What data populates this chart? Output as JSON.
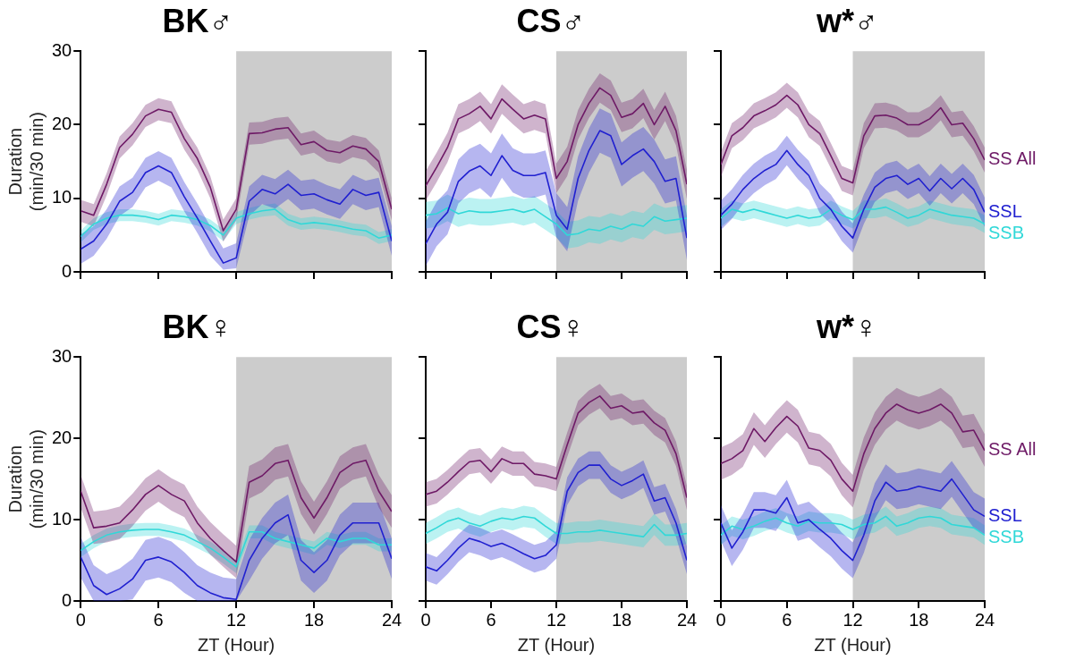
{
  "chart_data": [
    {
      "type": "line",
      "title": "BK♂",
      "ylabel": "Duration\n(min/30 min)",
      "x": [
        0,
        1,
        2,
        3,
        4,
        5,
        6,
        7,
        8,
        9,
        10,
        11,
        12,
        13,
        14,
        15,
        16,
        17,
        18,
        19,
        20,
        21,
        22,
        23,
        24
      ],
      "xlim": [
        0,
        24
      ],
      "xticks": [
        0,
        6,
        12,
        18,
        24
      ],
      "ylim": [
        0,
        30
      ],
      "yticks": [
        0,
        10,
        20,
        30
      ],
      "tick_labels": "y",
      "grid": false,
      "bands": [
        {
          "axis": "x",
          "from": 12,
          "to": 24,
          "color": "#cccccc"
        }
      ],
      "series": [
        {
          "color": "#6e1a66",
          "values": [
            8.3,
            7.7,
            11.9,
            16.9,
            18.7,
            21.2,
            22.1,
            21.7,
            18.1,
            15.4,
            11.5,
            5.6,
            8.5,
            18.8,
            18.9,
            19.4,
            19.6,
            17.3,
            17.7,
            16.5,
            16.2,
            17.1,
            16.7,
            15,
            8.5
          ],
          "lower": [
            6.8,
            6.2,
            10.4,
            15.4,
            17.2,
            19.7,
            20.6,
            20.2,
            16.6,
            13.9,
            10,
            4.1,
            7,
            17.3,
            17.4,
            17.9,
            18.1,
            15.8,
            16.2,
            15,
            14.7,
            15.6,
            15.2,
            13.5,
            7
          ],
          "upper": [
            9.8,
            9.2,
            13.4,
            18.4,
            20.2,
            22.7,
            23.6,
            23.2,
            19.6,
            16.9,
            13,
            7.1,
            10,
            20.3,
            20.4,
            20.9,
            21.1,
            18.8,
            19.2,
            18,
            17.7,
            18.6,
            18.2,
            16.5,
            10
          ]
        },
        {
          "color": "#2020d0",
          "values": [
            3.1,
            4.2,
            6.5,
            9.6,
            10.8,
            13.5,
            14.4,
            13.5,
            10.2,
            7.3,
            4.2,
            1.2,
            1.9,
            9.6,
            11.2,
            10.6,
            11.9,
            10.4,
            10.6,
            9.8,
            9.2,
            11.2,
            10.4,
            10.8,
            4.2
          ],
          "lower": [
            1.1,
            2.2,
            4.5,
            7.6,
            8.8,
            11.5,
            12.4,
            11.5,
            8.2,
            5.3,
            2.2,
            0.3,
            0.5,
            7.6,
            9.2,
            8.6,
            9.9,
            8.4,
            8.6,
            7.8,
            7.2,
            9.2,
            8.4,
            8.8,
            2.2
          ],
          "upper": [
            5.1,
            6.2,
            8.5,
            11.6,
            12.8,
            15.5,
            16.4,
            15.5,
            12.2,
            9.3,
            6.2,
            3.2,
            3.9,
            11.6,
            13.2,
            12.6,
            13.9,
            12.4,
            12.6,
            11.8,
            11.2,
            13.2,
            12.4,
            12.8,
            6.2
          ]
        },
        {
          "color": "#30d8d8",
          "values": [
            4.8,
            6.5,
            7.3,
            7.7,
            7.7,
            7.5,
            7.1,
            7.7,
            7.5,
            7.1,
            6.3,
            5,
            7.3,
            7.9,
            8.3,
            8.5,
            7.1,
            6.5,
            6.7,
            6.5,
            6.2,
            5.8,
            5.6,
            4.6,
            5
          ],
          "lower": [
            4,
            5.7,
            6.5,
            6.9,
            6.9,
            6.7,
            6.3,
            6.9,
            6.7,
            6.3,
            5.5,
            4.2,
            6.5,
            7.1,
            7.5,
            7.7,
            6.3,
            5.7,
            5.9,
            5.7,
            5.4,
            5,
            4.8,
            3.8,
            4.2
          ],
          "upper": [
            5.6,
            7.3,
            8.1,
            8.5,
            8.5,
            8.3,
            7.9,
            8.5,
            8.3,
            7.9,
            7.1,
            5.8,
            8.1,
            8.7,
            9.1,
            9.3,
            7.9,
            7.3,
            7.5,
            7.3,
            7,
            6.6,
            6.4,
            5.4,
            5.8
          ]
        }
      ]
    },
    {
      "type": "line",
      "title": "CS♂",
      "x": [
        0,
        1,
        2,
        3,
        4,
        5,
        6,
        7,
        8,
        9,
        10,
        11,
        12,
        13,
        14,
        15,
        16,
        17,
        18,
        19,
        20,
        21,
        22,
        23,
        24
      ],
      "xlim": [
        0,
        24
      ],
      "xticks": [
        0,
        6,
        12,
        18,
        24
      ],
      "ylim": [
        0,
        30
      ],
      "yticks": [
        0,
        10,
        20,
        30
      ],
      "tick_labels": false,
      "grid": false,
      "bands": [
        {
          "axis": "x",
          "from": 12,
          "to": 24,
          "color": "#cccccc"
        }
      ],
      "series": [
        {
          "color": "#6e1a66",
          "values": [
            11.7,
            14.2,
            16.9,
            20.8,
            21.5,
            22.5,
            20.8,
            23.5,
            22.1,
            20.8,
            21.3,
            20.8,
            12.7,
            15,
            20,
            22.9,
            25,
            24,
            21,
            21.5,
            22.9,
            20,
            22.5,
            19.2,
            11.9
          ],
          "lower": [
            9.7,
            12.2,
            14.9,
            18.8,
            19.5,
            20.5,
            18.8,
            21.5,
            20.1,
            18.8,
            19.3,
            18.8,
            10.7,
            13,
            18,
            20.9,
            23,
            22,
            19,
            19.5,
            20.9,
            18,
            20.5,
            17.2,
            9.9
          ],
          "upper": [
            13.7,
            16.2,
            18.9,
            22.8,
            23.5,
            24.5,
            22.8,
            25.5,
            24.1,
            22.8,
            23.3,
            22.8,
            14.7,
            17,
            22,
            24.9,
            27,
            26,
            23,
            23.5,
            24.9,
            22,
            24.5,
            21.2,
            13.9
          ]
        },
        {
          "color": "#2020d0",
          "values": [
            3.8,
            6.5,
            8.1,
            12.3,
            13.7,
            14.4,
            13.1,
            15.8,
            13.8,
            13.1,
            13.1,
            13.5,
            7.7,
            5.8,
            12.7,
            16.5,
            19.2,
            18.5,
            14.6,
            15.8,
            16.7,
            15,
            12.3,
            12.7,
            4.6
          ],
          "lower": [
            0.8,
            3.5,
            5.1,
            9.3,
            10.7,
            11.4,
            10.1,
            12.8,
            10.8,
            10.1,
            10.1,
            10.5,
            4.7,
            2.8,
            9.7,
            13.5,
            16.2,
            15.5,
            11.6,
            12.8,
            13.7,
            12,
            9.3,
            9.7,
            1.6
          ],
          "upper": [
            6.8,
            9.5,
            11.1,
            15.3,
            16.7,
            17.4,
            16.1,
            18.8,
            16.8,
            16.1,
            16.1,
            16.5,
            10.7,
            8.8,
            15.7,
            19.5,
            22.2,
            21.5,
            17.6,
            18.8,
            19.7,
            18,
            15.3,
            15.7,
            7.6
          ]
        },
        {
          "color": "#30d8d8",
          "values": [
            7.7,
            7.9,
            8.7,
            7.9,
            8.3,
            8.1,
            8.1,
            8.3,
            8.5,
            8.1,
            8.5,
            7.5,
            6.5,
            5,
            5.2,
            5.8,
            5.6,
            6.2,
            5.8,
            6.5,
            6.2,
            7.5,
            6.9,
            7.1,
            7.3
          ],
          "lower": [
            5.9,
            6.1,
            6.9,
            6.1,
            6.5,
            6.3,
            6.3,
            6.5,
            6.7,
            6.3,
            6.7,
            5.7,
            4.7,
            3.2,
            3.4,
            4,
            3.8,
            4.4,
            4,
            4.7,
            4.4,
            5.7,
            5.1,
            5.3,
            5.5
          ],
          "upper": [
            9.5,
            9.7,
            10.5,
            9.7,
            10.1,
            9.9,
            9.9,
            10.1,
            10.3,
            9.9,
            10.3,
            9.3,
            8.3,
            6.8,
            7,
            7.6,
            7.4,
            8,
            7.6,
            8.3,
            8,
            9.3,
            8.7,
            8.9,
            9.1
          ]
        }
      ]
    },
    {
      "type": "line",
      "title": "w*♂",
      "x": [
        0,
        1,
        2,
        3,
        4,
        5,
        6,
        7,
        8,
        9,
        10,
        11,
        12,
        13,
        14,
        15,
        16,
        17,
        18,
        19,
        20,
        21,
        22,
        23,
        24
      ],
      "xlim": [
        0,
        24
      ],
      "xticks": [
        0,
        6,
        12,
        18,
        24
      ],
      "ylim": [
        0,
        30
      ],
      "yticks": [
        0,
        10,
        20,
        30
      ],
      "tick_labels": false,
      "grid": false,
      "bands": [
        {
          "axis": "x",
          "from": 12,
          "to": 24,
          "color": "#cccccc"
        }
      ],
      "series": [
        {
          "name": "SS All",
          "color": "#6e1a66",
          "values": [
            14.6,
            18.5,
            19.6,
            21.2,
            21.9,
            22.7,
            24,
            22.7,
            20,
            18.8,
            15.8,
            12.7,
            12.1,
            18.5,
            21.2,
            21.3,
            20.9,
            20,
            20,
            20.8,
            22.3,
            20,
            20.2,
            18.1,
            15.2
          ],
          "lower": [
            12.9,
            16.8,
            17.9,
            19.5,
            20.2,
            21,
            22.3,
            21,
            18.3,
            17.1,
            14.1,
            11,
            10.4,
            16.8,
            19.5,
            19.6,
            19.2,
            18.3,
            18.3,
            19.1,
            20.6,
            18.3,
            18.5,
            16.4,
            13.5
          ],
          "upper": [
            16.3,
            20.2,
            21.3,
            22.9,
            23.6,
            24.4,
            25.7,
            24.4,
            21.7,
            20.5,
            17.5,
            14.4,
            13.8,
            20.2,
            22.9,
            23,
            22.6,
            21.7,
            21.7,
            22.5,
            24,
            21.7,
            21.9,
            19.8,
            16.9
          ]
        },
        {
          "name": "SSL",
          "color": "#2020d0",
          "values": [
            7.7,
            9.2,
            11.2,
            12.7,
            13.8,
            14.6,
            16.5,
            14.6,
            13.1,
            10,
            8.5,
            6.2,
            4.6,
            8.5,
            11.5,
            12.7,
            13.1,
            11.9,
            12.7,
            11,
            12.7,
            11.3,
            12.7,
            11.2,
            8.1
          ],
          "lower": [
            5.7,
            7.2,
            9.2,
            10.7,
            11.8,
            12.6,
            14.5,
            12.6,
            11.1,
            8,
            6.5,
            4.2,
            2.6,
            6.5,
            9.5,
            10.7,
            11.1,
            9.9,
            10.7,
            9,
            10.7,
            9.3,
            10.7,
            9.2,
            6.1
          ],
          "upper": [
            9.7,
            11.2,
            13.2,
            14.7,
            15.8,
            16.6,
            18.5,
            16.6,
            15.1,
            12,
            10.5,
            8.2,
            6.6,
            10.5,
            13.5,
            14.7,
            15.1,
            13.9,
            14.7,
            13,
            14.7,
            13.3,
            14.7,
            13.2,
            10.1
          ]
        },
        {
          "name": "SSB",
          "color": "#30d8d8",
          "values": [
            7.3,
            8.5,
            8.1,
            8.5,
            8.1,
            7.7,
            7.3,
            7.7,
            7.3,
            7.5,
            8.5,
            7.7,
            7.1,
            8.5,
            8.5,
            8.8,
            8.1,
            7.3,
            7.7,
            8.5,
            8.1,
            7.7,
            7.5,
            7.3,
            6.5
          ],
          "lower": [
            6.1,
            7.3,
            6.9,
            7.3,
            6.9,
            6.5,
            6.1,
            6.5,
            6.1,
            6.3,
            7.3,
            6.5,
            5.9,
            7.3,
            7.3,
            7.6,
            6.9,
            6.1,
            6.5,
            7.3,
            6.9,
            6.5,
            6.3,
            6.1,
            5.3
          ],
          "upper": [
            8.5,
            9.7,
            9.3,
            9.7,
            9.3,
            8.9,
            8.5,
            8.9,
            8.5,
            8.7,
            9.7,
            8.9,
            8.3,
            9.7,
            9.7,
            10,
            9.3,
            8.5,
            8.9,
            9.7,
            9.3,
            8.9,
            8.7,
            8.5,
            7.7
          ]
        }
      ]
    },
    {
      "type": "line",
      "title": "BK♀",
      "xlabel": "ZT (Hour)",
      "ylabel": "Duration\n(min/30 min)",
      "x": [
        0,
        1,
        2,
        3,
        4,
        5,
        6,
        7,
        8,
        9,
        10,
        11,
        12,
        13,
        14,
        15,
        16,
        17,
        18,
        19,
        20,
        21,
        22,
        23,
        24
      ],
      "xlim": [
        0,
        24
      ],
      "xticks": [
        0,
        6,
        12,
        18,
        24
      ],
      "ylim": [
        0,
        30
      ],
      "yticks": [
        0,
        10,
        20,
        30
      ],
      "grid": false,
      "bands": [
        {
          "axis": "x",
          "from": 12,
          "to": 24,
          "color": "#cccccc"
        }
      ],
      "series": [
        {
          "color": "#6e1a66",
          "values": [
            13.5,
            9,
            9.2,
            9.6,
            11.2,
            13.1,
            14.2,
            13.1,
            12.3,
            9.6,
            7.7,
            6.2,
            4.8,
            14.6,
            15.4,
            16.9,
            17.3,
            12.7,
            10.2,
            12.7,
            15.8,
            16.9,
            17.3,
            13.5,
            11
          ],
          "lower": [
            11.5,
            7,
            7.2,
            7.6,
            9.2,
            11.1,
            12.2,
            11.1,
            10.3,
            7.6,
            5.7,
            4.2,
            2.8,
            12.6,
            13.4,
            14.9,
            15.3,
            10.7,
            8.2,
            10.7,
            13.8,
            14.9,
            15.3,
            11.5,
            9
          ],
          "upper": [
            15.5,
            11,
            11.2,
            11.6,
            13.2,
            15.1,
            16.2,
            15.1,
            14.3,
            11.6,
            9.7,
            8.2,
            6.8,
            16.6,
            17.4,
            18.9,
            19.3,
            14.7,
            12.2,
            14.7,
            17.8,
            18.9,
            19.3,
            15.5,
            13
          ]
        },
        {
          "color": "#2020d0",
          "values": [
            5.4,
            1.9,
            0.8,
            1.5,
            2.7,
            5,
            5.4,
            4.8,
            3.5,
            1.9,
            1,
            0.4,
            0.2,
            5,
            7.7,
            9.6,
            10.6,
            5,
            3.5,
            5,
            8.1,
            9.6,
            9.6,
            9.6,
            5.2
          ],
          "lower": [
            2.9,
            0,
            0,
            0,
            0.2,
            2.5,
            2.9,
            2.3,
            1,
            0,
            0,
            0,
            0,
            2.5,
            5.2,
            7.1,
            8.1,
            2.5,
            1,
            2.5,
            5.6,
            7.1,
            7.1,
            7.1,
            2.7
          ],
          "upper": [
            7.9,
            4.4,
            3.3,
            4,
            5.2,
            7.5,
            7.9,
            7.3,
            6,
            4.4,
            3.5,
            2.9,
            2.7,
            7.5,
            10.2,
            12.1,
            13.1,
            7.5,
            6,
            7.5,
            10.6,
            12.1,
            12.1,
            12.1,
            7.7
          ]
        },
        {
          "color": "#30d8d8",
          "values": [
            6.2,
            7.3,
            8.1,
            8.5,
            8.7,
            8.8,
            8.8,
            8.5,
            8.1,
            7.3,
            6.5,
            5.4,
            4.2,
            8.5,
            8.5,
            7.7,
            7.3,
            6.9,
            6.5,
            7.7,
            7.3,
            7.7,
            7.7,
            6.9,
            6.9
          ],
          "lower": [
            5.4,
            6.5,
            7.3,
            7.7,
            7.9,
            8,
            8,
            7.7,
            7.3,
            6.5,
            5.7,
            4.6,
            3.4,
            7.7,
            7.7,
            6.9,
            6.5,
            6.1,
            5.7,
            6.9,
            6.5,
            6.9,
            6.9,
            6.1,
            6.1
          ],
          "upper": [
            7,
            8.1,
            8.9,
            9.3,
            9.5,
            9.6,
            9.6,
            9.3,
            8.9,
            8.1,
            7.3,
            6.2,
            5,
            9.3,
            9.3,
            8.5,
            8.1,
            7.7,
            7.3,
            8.5,
            8.1,
            8.5,
            8.5,
            7.7,
            7.7
          ]
        }
      ]
    },
    {
      "type": "line",
      "title": "CS♀",
      "xlabel": "ZT (Hour)",
      "x": [
        0,
        1,
        2,
        3,
        4,
        5,
        6,
        7,
        8,
        9,
        10,
        11,
        12,
        13,
        14,
        15,
        16,
        17,
        18,
        19,
        20,
        21,
        22,
        23,
        24
      ],
      "xlim": [
        0,
        24
      ],
      "xticks": [
        0,
        6,
        12,
        18,
        24
      ],
      "ylim": [
        0,
        30
      ],
      "yticks": [
        0,
        10,
        20,
        30
      ],
      "tick_labels": "x",
      "grid": false,
      "bands": [
        {
          "axis": "x",
          "from": 12,
          "to": 24,
          "color": "#cccccc"
        }
      ],
      "series": [
        {
          "color": "#6e1a66",
          "values": [
            13.1,
            13.5,
            14.6,
            15.9,
            17.1,
            17.3,
            15.9,
            17.5,
            16.9,
            16.9,
            15.6,
            15.4,
            15,
            19.2,
            23.1,
            24.4,
            25.2,
            23.7,
            24,
            23.1,
            23.3,
            21.9,
            21,
            18.1,
            12.7
          ],
          "lower": [
            11.6,
            12,
            13.1,
            14.4,
            15.6,
            15.8,
            14.4,
            16,
            15.4,
            15.4,
            14.1,
            13.9,
            13.5,
            17.7,
            21.6,
            22.9,
            23.7,
            22.2,
            22.5,
            21.6,
            21.8,
            20.4,
            19.5,
            16.6,
            11.2
          ],
          "upper": [
            14.6,
            15,
            16.1,
            17.4,
            18.6,
            18.8,
            17.4,
            19,
            18.4,
            18.4,
            17.1,
            16.9,
            16.5,
            20.7,
            24.6,
            25.9,
            26.7,
            25.2,
            25.5,
            24.6,
            24.8,
            23.4,
            22.5,
            19.6,
            14.2
          ]
        },
        {
          "color": "#2020d0",
          "values": [
            4.2,
            3.7,
            5,
            6.5,
            7.7,
            7.3,
            6.7,
            7.1,
            6.5,
            5.8,
            5.2,
            5.6,
            6.9,
            13.5,
            15.8,
            16.7,
            16.7,
            15,
            14.2,
            14.8,
            15.6,
            12.3,
            12.7,
            9.6,
            5
          ],
          "lower": [
            2.5,
            2,
            3.3,
            4.8,
            6,
            5.6,
            5,
            5.4,
            4.8,
            4.1,
            3.5,
            3.9,
            5.2,
            11.8,
            14.1,
            15,
            15,
            13.3,
            12.5,
            13.1,
            13.9,
            10.6,
            11,
            7.9,
            3.3
          ],
          "upper": [
            5.9,
            5.4,
            6.7,
            8.2,
            9.4,
            9,
            8.4,
            8.8,
            8.2,
            7.5,
            6.9,
            7.3,
            8.6,
            15.2,
            17.5,
            18.4,
            18.4,
            16.7,
            15.9,
            16.5,
            17.3,
            14,
            14.4,
            11.3,
            6.7
          ]
        },
        {
          "color": "#30d8d8",
          "values": [
            8.3,
            9,
            9.8,
            10.2,
            9.6,
            9.2,
            9.8,
            10.2,
            10,
            10.4,
            10.2,
            9.2,
            8.3,
            8.3,
            8.5,
            8.5,
            8.7,
            8.5,
            8.3,
            8.1,
            7.9,
            9.4,
            8.1,
            8.1,
            8.3
          ],
          "lower": [
            7,
            7.7,
            8.5,
            8.9,
            8.3,
            7.9,
            8.5,
            8.9,
            8.7,
            9.1,
            8.9,
            7.9,
            7,
            7,
            7.2,
            7.2,
            7.4,
            7.2,
            7,
            6.8,
            6.6,
            8.1,
            6.8,
            6.8,
            7
          ],
          "upper": [
            9.6,
            10.3,
            11.1,
            11.5,
            10.9,
            10.5,
            11.1,
            11.5,
            11.3,
            11.7,
            11.5,
            10.5,
            9.6,
            9.6,
            9.8,
            9.8,
            10,
            9.8,
            9.6,
            9.4,
            9.2,
            10.7,
            9.4,
            9.4,
            9.6
          ]
        }
      ]
    },
    {
      "type": "line",
      "title": "w*♀",
      "xlabel": "ZT (Hour)",
      "x": [
        0,
        1,
        2,
        3,
        4,
        5,
        6,
        7,
        8,
        9,
        10,
        11,
        12,
        13,
        14,
        15,
        16,
        17,
        18,
        19,
        20,
        21,
        22,
        23,
        24
      ],
      "xlim": [
        0,
        24
      ],
      "xticks": [
        0,
        6,
        12,
        18,
        24
      ],
      "ylim": [
        0,
        30
      ],
      "yticks": [
        0,
        10,
        20,
        30
      ],
      "tick_labels": "x",
      "grid": false,
      "bands": [
        {
          "axis": "x",
          "from": 12,
          "to": 24,
          "color": "#cccccc"
        }
      ],
      "series": [
        {
          "name": "SS All",
          "color": "#6e1a66",
          "values": [
            16.9,
            17.5,
            18.5,
            21.2,
            19.6,
            21.3,
            22.7,
            21.5,
            18.8,
            18.5,
            17.3,
            15,
            13.5,
            18.1,
            21.2,
            23.1,
            24.2,
            23.5,
            23.1,
            23.5,
            24.2,
            23.1,
            20.8,
            21,
            18.5
          ],
          "lower": [
            14.9,
            15.5,
            16.5,
            19.2,
            17.6,
            19.3,
            20.7,
            19.5,
            16.8,
            16.5,
            15.3,
            13,
            11.5,
            16.1,
            19.2,
            21.1,
            22.2,
            21.5,
            21.1,
            21.5,
            22.2,
            21.1,
            18.8,
            19,
            16.5
          ],
          "upper": [
            18.9,
            19.5,
            20.5,
            23.2,
            21.6,
            23.3,
            24.7,
            23.5,
            20.8,
            20.5,
            19.3,
            17,
            15.5,
            20.1,
            23.2,
            25.1,
            26.2,
            25.5,
            25.1,
            25.5,
            26.2,
            25.1,
            22.8,
            23,
            20.5
          ]
        },
        {
          "name": "SSL",
          "color": "#2020d0",
          "values": [
            9.6,
            6.5,
            8.5,
            11.2,
            11.2,
            10.8,
            12.7,
            9.6,
            10,
            8.8,
            7.7,
            6.2,
            5,
            8.1,
            12.3,
            14.6,
            13.5,
            13.7,
            14.1,
            13.8,
            13.5,
            15,
            13.1,
            11.2,
            10.4
          ],
          "lower": [
            7.4,
            4.3,
            6.3,
            9,
            9,
            8.6,
            10.5,
            7.4,
            7.8,
            6.6,
            5.5,
            4,
            2.8,
            5.9,
            10.1,
            12.4,
            11.3,
            11.5,
            11.9,
            11.6,
            11.3,
            12.8,
            10.9,
            9,
            8.2
          ],
          "upper": [
            11.8,
            8.7,
            10.7,
            13.4,
            13.4,
            13,
            14.9,
            11.8,
            12.2,
            11,
            9.9,
            8.4,
            7.2,
            10.3,
            14.5,
            16.8,
            15.7,
            15.9,
            16.3,
            16,
            15.7,
            17.2,
            15.3,
            13.4,
            12.6
          ]
        },
        {
          "name": "SSB",
          "color": "#30d8d8",
          "values": [
            8.1,
            9.2,
            8.8,
            9.2,
            9.8,
            10.2,
            9.6,
            9.2,
            9.8,
            9.6,
            9.6,
            9.4,
            8.8,
            9.4,
            9.6,
            10.4,
            9.2,
            9.6,
            10.2,
            10.4,
            10.2,
            9.4,
            9.2,
            9,
            8.1
          ],
          "lower": [
            6.9,
            8,
            7.6,
            8,
            8.6,
            9,
            8.4,
            8,
            8.6,
            8.4,
            8.4,
            8.2,
            7.6,
            8.2,
            8.4,
            9.2,
            8,
            8.4,
            9,
            9.2,
            9,
            8.2,
            8,
            7.8,
            6.9
          ],
          "upper": [
            9.3,
            10.4,
            10,
            10.4,
            11,
            11.4,
            10.8,
            10.4,
            11,
            10.8,
            10.8,
            10.6,
            10,
            10.6,
            10.8,
            11.6,
            10.4,
            10.8,
            11.4,
            11.6,
            11.4,
            10.6,
            10.4,
            10.2,
            9.3
          ]
        }
      ]
    }
  ]
}
